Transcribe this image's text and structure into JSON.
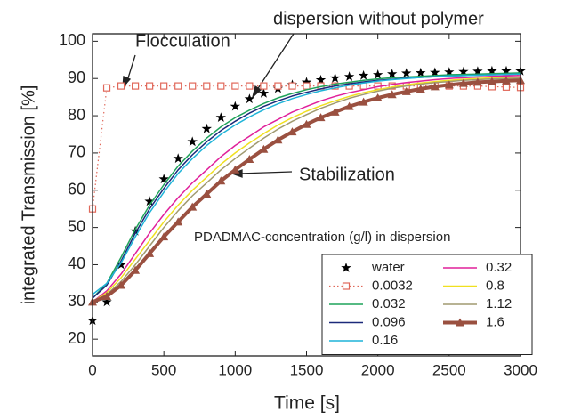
{
  "chart_data": {
    "type": "line",
    "x_label": "Time [s]",
    "y_label": "integrated Transmission [%]",
    "annotations": [
      "Flocculation",
      "dispersion without polymer",
      "Stabilization"
    ],
    "legend_title": "PDADMAC-concentration (g/l) in dispersion",
    "legend": "lower right",
    "xlim": [
      0,
      3000
    ],
    "xticks": [
      0,
      500,
      1000,
      1500,
      2000,
      2500,
      3000
    ],
    "ylim": [
      15.5,
      102
    ],
    "yticks": [
      20,
      30,
      40,
      50,
      60,
      70,
      80,
      90,
      100
    ],
    "x": [
      0,
      100,
      200,
      300,
      400,
      500,
      600,
      700,
      800,
      900,
      1000,
      1100,
      1200,
      1300,
      1400,
      1500,
      1600,
      1700,
      1800,
      1900,
      2000,
      2100,
      2200,
      2300,
      2400,
      2500,
      2600,
      2700,
      2800,
      2900,
      3000
    ],
    "series": [
      {
        "name": "water",
        "color": "#000000",
        "marker": "star",
        "line_width": 0,
        "values": [
          25,
          30,
          40,
          49,
          57,
          63,
          68.5,
          73,
          76.5,
          79.5,
          82.5,
          84.5,
          86,
          87.3,
          88.3,
          89,
          89.6,
          90.1,
          90.5,
          90.8,
          91,
          91.2,
          91.4,
          91.5,
          91.6,
          91.7,
          91.8,
          91.9,
          92,
          92,
          92
        ]
      },
      {
        "name": "0.0032",
        "color": "#e0685a",
        "marker": "square",
        "dash": "dotted",
        "line_width": 1.2,
        "values": [
          55,
          87.5,
          88,
          88,
          88,
          88,
          88,
          88,
          88,
          88,
          88,
          88,
          88,
          88,
          88,
          88,
          88,
          88,
          88,
          88,
          88,
          88,
          88,
          88,
          88,
          88,
          88,
          88,
          87.8,
          87.7,
          87.6
        ]
      },
      {
        "name": "0.032",
        "color": "#1fa35a",
        "line_width": 1.5,
        "values": [
          31,
          35,
          42,
          49.5,
          56,
          61.5,
          66.5,
          70.5,
          74,
          77,
          79.5,
          81.5,
          83.3,
          84.8,
          86,
          87,
          87.8,
          88.5,
          89,
          89.5,
          89.9,
          90.2,
          90.4,
          90.6,
          90.8,
          91,
          91.1,
          91.2,
          91.3,
          91.4,
          91.5
        ]
      },
      {
        "name": "0.096",
        "color": "#1c2a7a",
        "line_width": 1.5,
        "values": [
          31,
          34.5,
          41,
          48.5,
          55,
          60.5,
          65.5,
          69.5,
          73,
          76,
          78.5,
          80.7,
          82.5,
          84,
          85.3,
          86.3,
          87.2,
          88,
          88.6,
          89.1,
          89.5,
          89.8,
          90.1,
          90.3,
          90.5,
          90.7,
          90.8,
          90.9,
          91,
          91.1,
          91.2
        ]
      },
      {
        "name": "0.16",
        "color": "#1fb4d8",
        "line_width": 1.5,
        "values": [
          32,
          35,
          40.5,
          47.5,
          54,
          59.5,
          64.5,
          68.5,
          72,
          75,
          77.5,
          79.7,
          81.6,
          83.2,
          84.6,
          85.7,
          86.7,
          87.5,
          88.2,
          88.8,
          89.3,
          89.7,
          90,
          90.3,
          90.5,
          90.7,
          90.8,
          90.9,
          91,
          91.1,
          91.2
        ]
      },
      {
        "name": "0.32",
        "color": "#e0209a",
        "line_width": 1.5,
        "values": [
          30,
          33,
          37.5,
          43,
          48.5,
          53.5,
          58,
          62,
          65.5,
          69,
          72,
          74.5,
          77,
          79,
          81,
          82.5,
          84,
          85.2,
          86.2,
          87,
          87.8,
          88.4,
          88.9,
          89.3,
          89.7,
          90,
          90.2,
          90.4,
          90.6,
          90.7,
          90.8
        ]
      },
      {
        "name": "0.8",
        "color": "#f0e020",
        "line_width": 1.5,
        "values": [
          30,
          32.5,
          36.5,
          41.5,
          46.5,
          51.5,
          56,
          60,
          63.5,
          67,
          70,
          72.7,
          75.2,
          77.5,
          79.5,
          81.2,
          82.7,
          84,
          85.2,
          86.2,
          87,
          87.7,
          88.3,
          88.8,
          89.2,
          89.5,
          89.8,
          90,
          90.2,
          90.3,
          90.4
        ]
      },
      {
        "name": "1.12",
        "color": "#a09a70",
        "line_width": 1.5,
        "values": [
          30,
          32,
          35.5,
          40,
          45,
          50,
          54.5,
          58.5,
          62,
          65.5,
          68.5,
          71.3,
          74,
          76.4,
          78.5,
          80.3,
          82,
          83.4,
          84.7,
          85.7,
          86.6,
          87.4,
          88,
          88.5,
          88.9,
          89.2,
          89.5,
          89.7,
          89.9,
          90,
          90.1
        ]
      },
      {
        "name": "1.6",
        "color": "#9a5040",
        "marker": "triangle",
        "line_width": 4,
        "values": [
          30,
          31.5,
          34.5,
          38.5,
          43,
          47.5,
          51.5,
          55.5,
          59,
          62.5,
          65.5,
          68.3,
          71,
          73.5,
          75.7,
          77.7,
          79.5,
          81,
          82.5,
          83.7,
          84.8,
          85.7,
          86.5,
          87.2,
          87.8,
          88.3,
          88.7,
          89,
          89.2,
          89.4,
          89.5
        ]
      }
    ]
  }
}
